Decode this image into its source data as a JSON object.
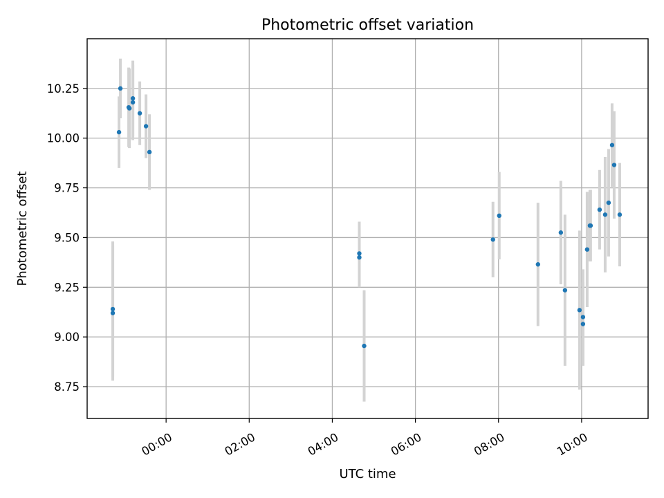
{
  "chart_data": {
    "type": "scatter",
    "title": "Photometric offset variation",
    "xlabel": "UTC time",
    "ylabel": "Photometric offset",
    "grid": true,
    "legend": "none",
    "x_tick_labels": [
      "00:00",
      "02:00",
      "04:00",
      "06:00",
      "08:00",
      "10:00"
    ],
    "x_ticks": [
      "00:00",
      "02:00",
      "04:00",
      "06:00",
      "08:00",
      "10:00"
    ],
    "xlim": [
      "-01:54",
      "11:36"
    ],
    "y_ticks": [
      8.75,
      9.0,
      9.25,
      9.5,
      9.75,
      10.0,
      10.25
    ],
    "y_tick_labels": [
      "8.75",
      "9.00",
      "9.25",
      "9.50",
      "9.75",
      "10.00",
      "10.25"
    ],
    "ylim": [
      8.59,
      10.5
    ],
    "colors": {
      "points": "#1f77b4",
      "error_bars": "#d3d3d3"
    },
    "points": [
      {
        "x": "-01:17",
        "y": 9.14,
        "yerr": 0.34
      },
      {
        "x": "-01:17",
        "y": 9.12,
        "yerr": 0.34
      },
      {
        "x": "-01:08",
        "y": 10.03,
        "yerr": 0.18
      },
      {
        "x": "-01:06",
        "y": 10.25,
        "yerr": 0.15
      },
      {
        "x": "-00:54",
        "y": 10.155,
        "yerr": 0.2
      },
      {
        "x": "-00:53",
        "y": 10.15,
        "yerr": 0.2
      },
      {
        "x": "-00:48",
        "y": 10.2,
        "yerr": 0.19
      },
      {
        "x": "-00:48",
        "y": 10.18,
        "yerr": 0.19
      },
      {
        "x": "-00:38",
        "y": 10.125,
        "yerr": 0.16
      },
      {
        "x": "-00:29",
        "y": 10.06,
        "yerr": 0.16
      },
      {
        "x": "-00:24",
        "y": 9.93,
        "yerr": 0.19
      },
      {
        "x": "04:39",
        "y": 9.42,
        "yerr": 0.16
      },
      {
        "x": "04:39",
        "y": 9.4,
        "yerr": 0.15
      },
      {
        "x": "04:46",
        "y": 8.955,
        "yerr": 0.28
      },
      {
        "x": "07:52",
        "y": 9.49,
        "yerr": 0.19
      },
      {
        "x": "08:01",
        "y": 9.61,
        "yerr": 0.22
      },
      {
        "x": "08:57",
        "y": 9.365,
        "yerr": 0.31
      },
      {
        "x": "09:30",
        "y": 9.525,
        "yerr": 0.26
      },
      {
        "x": "09:36",
        "y": 9.235,
        "yerr": 0.38
      },
      {
        "x": "09:57",
        "y": 9.135,
        "yerr": 0.4
      },
      {
        "x": "10:02",
        "y": 9.1,
        "yerr": 0.24
      },
      {
        "x": "10:02",
        "y": 9.065,
        "yerr": 0.21
      },
      {
        "x": "10:08",
        "y": 9.44,
        "yerr": 0.29
      },
      {
        "x": "10:12",
        "y": 9.56,
        "yerr": 0.18
      },
      {
        "x": "10:13",
        "y": 9.56,
        "yerr": 0.18
      },
      {
        "x": "10:26",
        "y": 9.64,
        "yerr": 0.2
      },
      {
        "x": "10:34",
        "y": 9.615,
        "yerr": 0.29
      },
      {
        "x": "10:39",
        "y": 9.675,
        "yerr": 0.27
      },
      {
        "x": "10:44",
        "y": 9.965,
        "yerr": 0.21
      },
      {
        "x": "10:47",
        "y": 9.865,
        "yerr": 0.27
      },
      {
        "x": "10:55",
        "y": 9.615,
        "yerr": 0.26
      }
    ]
  }
}
